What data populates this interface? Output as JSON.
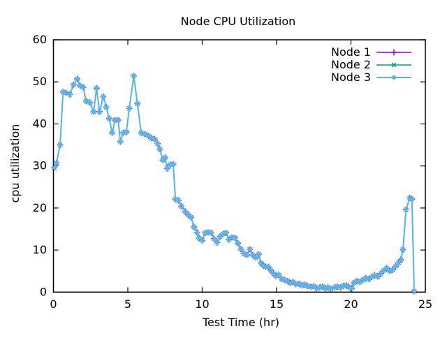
{
  "chart_data": {
    "type": "line",
    "title": "Node CPU Utilization",
    "xlabel": "Test Time (hr)",
    "ylabel": "cpu utilization",
    "xlim": [
      0,
      25
    ],
    "ylim": [
      0,
      60
    ],
    "x_ticks": [
      0,
      5,
      10,
      15,
      20,
      25
    ],
    "y_ticks": [
      0,
      10,
      20,
      30,
      40,
      50,
      60
    ],
    "grid": false,
    "legend_position": "top-right-inside",
    "axis_color": "#000000",
    "x": [
      0.05,
      0.2,
      0.45,
      0.65,
      0.85,
      1.1,
      1.35,
      1.6,
      1.8,
      2,
      2.2,
      2.45,
      2.7,
      2.9,
      3.1,
      3.35,
      3.55,
      3.75,
      3.95,
      4.15,
      4.35,
      4.5,
      4.7,
      4.9,
      5.1,
      5.4,
      5.65,
      5.9,
      6.15,
      6.4,
      6.6,
      6.8,
      7,
      7.15,
      7.35,
      7.5,
      7.65,
      7.85,
      8.05,
      8.2,
      8.4,
      8.6,
      8.85,
      9.05,
      9.25,
      9.45,
      9.65,
      9.8,
      10,
      10.2,
      10.4,
      10.6,
      10.8,
      11,
      11.2,
      11.4,
      11.6,
      11.8,
      12,
      12.2,
      12.4,
      12.6,
      12.8,
      13,
      13.2,
      13.4,
      13.6,
      13.8,
      13.95,
      14.1,
      14.25,
      14.45,
      14.6,
      14.8,
      14.95,
      15.15,
      15.35,
      15.55,
      15.75,
      15.9,
      16.1,
      16.3,
      16.5,
      16.7,
      16.9,
      17.1,
      17.3,
      17.5,
      17.7,
      17.9,
      18.1,
      18.3,
      18.45,
      18.65,
      18.9,
      19.1,
      19.3,
      19.5,
      19.7,
      19.85,
      20.05,
      20.2,
      20.4,
      20.6,
      20.8,
      21,
      21.2,
      21.4,
      21.6,
      21.8,
      22,
      22.2,
      22.4,
      22.6,
      22.8,
      23,
      23.2,
      23.35,
      23.5,
      23.7,
      23.95,
      24.1,
      24.25
    ],
    "series": [
      {
        "name": "Node 1",
        "color": "#9400d3",
        "marker": "plus",
        "values": [
          29.6,
          30.7,
          35,
          47.6,
          47.4,
          47,
          49.3,
          50.7,
          49.1,
          48.7,
          45.4,
          45.1,
          42.9,
          48.5,
          42.9,
          46.5,
          44,
          41.3,
          37.9,
          40.9,
          40.9,
          35.8,
          37.9,
          38.1,
          43.7,
          51.4,
          44.8,
          37.9,
          37.6,
          37.1,
          36.6,
          36.4,
          35.3,
          34,
          31.4,
          32,
          29.4,
          30.3,
          30.4,
          22.1,
          21.8,
          20.4,
          19.2,
          18.4,
          17.8,
          15.5,
          14.2,
          12.8,
          12.3,
          14.1,
          14.2,
          14.1,
          12.7,
          11.8,
          13.2,
          13.8,
          14.1,
          12.5,
          13,
          12.9,
          11.6,
          10.2,
          9.2,
          8.8,
          10.2,
          8.8,
          8.2,
          9,
          6.9,
          6.4,
          6,
          6,
          5.2,
          4.4,
          3.9,
          4.1,
          3.1,
          2.9,
          2.6,
          2.2,
          2.4,
          1.9,
          2,
          1.6,
          1.8,
          1.4,
          1.3,
          1.4,
          0.9,
          1.1,
          1.3,
          0.9,
          1.1,
          0.8,
          1.1,
          1.3,
          1.1,
          1.5,
          1.6,
          1.2,
          0.9,
          2.2,
          2.6,
          2.4,
          2.9,
          3.3,
          3.1,
          3.6,
          4,
          3.7,
          4.4,
          5.1,
          5.7,
          5,
          5.3,
          6.1,
          7,
          7.7,
          10.1,
          19.6,
          22.4,
          22.1,
          0.2
        ]
      },
      {
        "name": "Node 2",
        "color": "#009e73",
        "marker": "cross",
        "values": [
          29.6,
          30.7,
          35,
          47.6,
          47.4,
          47,
          49.3,
          50.7,
          49.1,
          48.7,
          45.4,
          45.1,
          42.9,
          48.5,
          42.9,
          46.5,
          44,
          41.3,
          37.9,
          40.9,
          40.9,
          35.8,
          37.9,
          38.1,
          43.7,
          51.4,
          44.8,
          37.9,
          37.6,
          37.1,
          36.6,
          36.4,
          35.3,
          34,
          31.4,
          32,
          29.4,
          30.3,
          30.4,
          22.1,
          21.8,
          20.4,
          19.2,
          18.4,
          17.8,
          15.5,
          14.2,
          12.8,
          12.3,
          14.1,
          14.2,
          14.1,
          12.7,
          11.8,
          13.2,
          13.8,
          14.1,
          12.5,
          13,
          12.9,
          11.6,
          10.2,
          9.2,
          8.8,
          10.2,
          8.8,
          8.2,
          9,
          6.9,
          6.4,
          6,
          6,
          5.2,
          4.4,
          3.9,
          4.1,
          3.1,
          2.9,
          2.6,
          2.2,
          2.4,
          1.9,
          2,
          1.6,
          1.8,
          1.4,
          1.3,
          1.4,
          0.9,
          1.1,
          1.3,
          0.9,
          1.1,
          0.8,
          1.1,
          1.3,
          1.1,
          1.5,
          1.6,
          1.2,
          0.9,
          2.2,
          2.6,
          2.4,
          2.9,
          3.3,
          3.1,
          3.6,
          4,
          3.7,
          4.4,
          5.1,
          5.7,
          5,
          5.3,
          6.1,
          7,
          7.7,
          10.1,
          19.6,
          22.4,
          22.1,
          0.2
        ]
      },
      {
        "name": "Node 3",
        "color": "#56b4e9",
        "marker": "asterisk",
        "values": [
          29.6,
          30.7,
          35,
          47.6,
          47.4,
          47,
          49.3,
          50.7,
          49.1,
          48.7,
          45.4,
          45.1,
          42.9,
          48.5,
          42.9,
          46.5,
          44,
          41.3,
          37.9,
          40.9,
          40.9,
          35.8,
          37.9,
          38.1,
          43.7,
          51.4,
          44.8,
          37.9,
          37.6,
          37.1,
          36.6,
          36.4,
          35.3,
          34,
          31.4,
          32,
          29.4,
          30.3,
          30.4,
          22.1,
          21.8,
          20.4,
          19.2,
          18.4,
          17.8,
          15.5,
          14.2,
          12.8,
          12.3,
          14.1,
          14.2,
          14.1,
          12.7,
          11.8,
          13.2,
          13.8,
          14.1,
          12.5,
          13,
          12.9,
          11.6,
          10.2,
          9.2,
          8.8,
          10.2,
          8.8,
          8.2,
          9,
          6.9,
          6.4,
          6,
          6,
          5.2,
          4.4,
          3.9,
          4.1,
          3.1,
          2.9,
          2.6,
          2.2,
          2.4,
          1.9,
          2,
          1.6,
          1.8,
          1.4,
          1.3,
          1.4,
          0.9,
          1.1,
          1.3,
          0.9,
          1.1,
          0.8,
          1.1,
          1.3,
          1.1,
          1.5,
          1.6,
          1.2,
          0.9,
          2.2,
          2.6,
          2.4,
          2.9,
          3.3,
          3.1,
          3.6,
          4,
          3.7,
          4.4,
          5.1,
          5.7,
          5,
          5.3,
          6.1,
          7,
          7.7,
          10.1,
          19.6,
          22.4,
          22.1,
          0.2
        ]
      }
    ]
  }
}
